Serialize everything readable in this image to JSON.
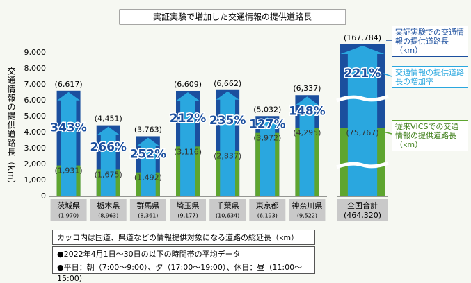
{
  "chart_data": {
    "type": "bar",
    "title": "実証実験で増加した交通情報の提供道路長",
    "y_label": "交通情報の提供道路長（km）",
    "categories": [
      "茨城県",
      "栃木県",
      "群馬県",
      "埼玉県",
      "千葉県",
      "東京都",
      "神奈川県"
    ],
    "road_lengths": [
      1970,
      8963,
      8361,
      9177,
      10634,
      6193,
      9522
    ],
    "road_length_labels": [
      "(1,970)",
      "(8,963)",
      "(8,361)",
      "(9,177)",
      "(10,634)",
      "(6,193)",
      "(9,522)"
    ],
    "series": [
      {
        "name": "実証実験での交通情報の提供道路長（km）",
        "color": "#1b4f9e",
        "values": [
          6617,
          4451,
          3763,
          6609,
          6662,
          5032,
          6337
        ],
        "value_labels": [
          "(6,617)",
          "(4,451)",
          "(3,763)",
          "(6,609)",
          "(6,662)",
          "(5,032)",
          "(6,337)"
        ]
      },
      {
        "name": "従来VICSでの交通情報の提供道路長（km）",
        "color": "#5ea52f",
        "values": [
          1931,
          1675,
          1492,
          3116,
          2837,
          3972,
          4295
        ],
        "value_labels": [
          "(1,931)",
          "(1,675)",
          "(1,492)",
          "(3,116)",
          "(2,837)",
          "(3,972)",
          "(4,295)"
        ]
      }
    ],
    "rate_name": "交通情報の提供道路長の増加率",
    "rate_color": "#2aa7df",
    "rates": [
      343,
      266,
      252,
      212,
      235,
      127,
      148
    ],
    "rate_labels": [
      "343%",
      "266%",
      "252%",
      "212%",
      "235%",
      "127%",
      "148%"
    ],
    "total": {
      "category": "全国合計",
      "road_length": 464320,
      "road_length_label": "(464,320)",
      "blue": 167784,
      "blue_label": "(167,784)",
      "green": 75767,
      "green_label": "(75,767)",
      "rate": 221,
      "rate_label": "221%"
    },
    "ylim": [
      0,
      9000
    ],
    "yticks": [
      0,
      {
        "value": 1000,
        "label": "1,000"
      },
      {
        "value": 2000,
        "label": "2,000"
      },
      {
        "value": 3000,
        "label": "3,000"
      },
      {
        "value": 4000,
        "label": "4,000"
      },
      {
        "value": 5000,
        "label": "5,000"
      },
      {
        "value": 6000,
        "label": "6,000"
      },
      {
        "value": 7000,
        "label": "7,000"
      },
      {
        "value": 8000,
        "label": "8,000"
      },
      {
        "value": 9000,
        "label": "9,000"
      }
    ],
    "notes": [
      "カッコ内は国道、県道などの情報提供対象になる道路の総延長（km）",
      "●2022年4月1日～30日の以下の時間帯の平均データ",
      "●平日：朝（7:00～9:00）、夕（17:00～19:00）、休日：昼（11:00～15:00）"
    ]
  }
}
